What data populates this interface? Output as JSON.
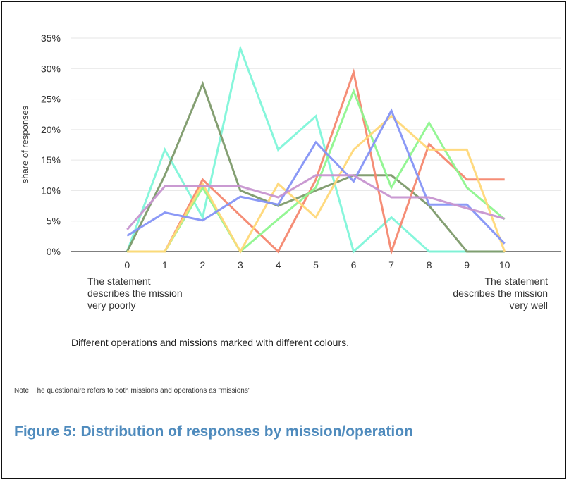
{
  "chart_data": {
    "type": "line",
    "ylabel": "share of responses",
    "xlabel": "",
    "x": [
      0,
      1,
      2,
      3,
      4,
      5,
      6,
      7,
      8,
      9,
      10
    ],
    "x_tick_labels": [
      "0",
      "1",
      "2",
      "3",
      "4",
      "5",
      "6",
      "7",
      "8",
      "9",
      "10"
    ],
    "y_tick_labels": [
      "0%",
      "5%",
      "10%",
      "15%",
      "20%",
      "25%",
      "30%",
      "35%"
    ],
    "ylim": [
      0,
      35
    ],
    "xlim": [
      -1.5,
      11.5
    ],
    "grid": true,
    "legend": "none",
    "series": [
      {
        "color": "#7ff5d9",
        "values": [
          0,
          16.7,
          5.6,
          33.3,
          16.7,
          22.2,
          0,
          5.6,
          0,
          0,
          0
        ]
      },
      {
        "color": "#7d9a6a",
        "values": [
          0,
          12.5,
          27.5,
          10,
          7.5,
          10,
          12.5,
          12.5,
          7.5,
          0,
          0
        ]
      },
      {
        "color": "#f4876f",
        "values": [
          0,
          0,
          11.8,
          5.9,
          0,
          11.8,
          29.4,
          0,
          17.6,
          11.8,
          11.8
        ]
      },
      {
        "color": "#8ef58e",
        "values": [
          0,
          0,
          10.5,
          0,
          5.3,
          10.5,
          26.3,
          10.5,
          21.1,
          10.5,
          5.3
        ]
      },
      {
        "color": "#ffd878",
        "values": [
          0,
          0,
          11.1,
          0,
          11.1,
          5.6,
          16.7,
          22.2,
          16.7,
          16.7,
          0
        ]
      },
      {
        "color": "#8593f5",
        "values": [
          2.6,
          6.4,
          5.1,
          9,
          7.7,
          17.9,
          11.5,
          23.1,
          7.7,
          7.7,
          1.3
        ]
      },
      {
        "color": "#c795d0",
        "values": [
          3.6,
          10.7,
          10.7,
          10.7,
          8.9,
          12.5,
          12.5,
          8.9,
          8.9,
          7.1,
          5.4
        ]
      }
    ]
  },
  "annotations": {
    "left": [
      "The statement",
      "describes the mission",
      "very poorly"
    ],
    "right": [
      "The statement",
      "describes the mission",
      "very well"
    ]
  },
  "caption": "Different operations and missions marked with different colours.",
  "footnote": "Note: The questionaire refers to both missions and operations as \"missions\"",
  "figure_title": "Figure 5: Distribution of responses by mission/operation"
}
